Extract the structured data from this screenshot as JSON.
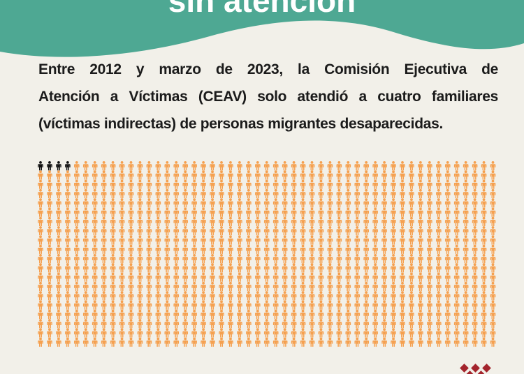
{
  "header": {
    "title": "sin atención"
  },
  "body": {
    "lines": [
      "Entre 2012 y marzo de 2023, la Comisión Ejecutiva de",
      "Atención a Víctimas (CEAV) solo atendió a cuatro familiares",
      "(víctimas indirectas) de personas migrantes desaparecidas."
    ]
  }
}
